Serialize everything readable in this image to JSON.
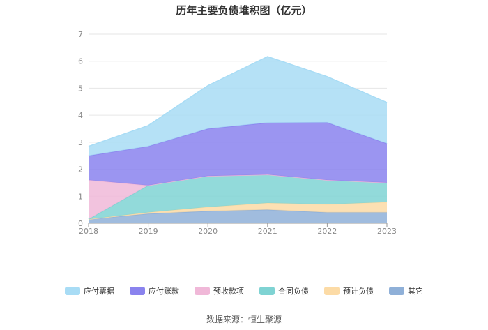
{
  "title": "历年主要负债堆积图（亿元）",
  "source": "数据来源：恒生聚源",
  "chart_data": {
    "type": "area",
    "stacked": true,
    "categories": [
      "2018",
      "2019",
      "2020",
      "2021",
      "2022",
      "2023"
    ],
    "ylim": [
      0,
      7
    ],
    "yticks": [
      "0",
      "1",
      "2",
      "3",
      "4",
      "5",
      "6",
      "7"
    ],
    "grid": true,
    "legend_position": "bottom",
    "series": [
      {
        "name": "其它",
        "color": "#8fb0d8",
        "values": [
          0.15,
          0.35,
          0.45,
          0.5,
          0.4,
          0.4
        ]
      },
      {
        "name": "预计负债",
        "color": "#fcdba6",
        "values": [
          0.0,
          0.05,
          0.15,
          0.25,
          0.3,
          0.38
        ]
      },
      {
        "name": "合同负债",
        "color": "#7fd3d3",
        "values": [
          0.0,
          1.0,
          1.15,
          1.05,
          0.9,
          0.72
        ]
      },
      {
        "name": "预收款项",
        "color": "#f0b8d8",
        "values": [
          1.45,
          0.0,
          0.0,
          0.0,
          0.0,
          0.0
        ]
      },
      {
        "name": "应付账款",
        "color": "#8a83ee",
        "values": [
          0.9,
          1.45,
          1.75,
          1.92,
          2.13,
          1.45
        ]
      },
      {
        "name": "应付票据",
        "color": "#a8dcf5",
        "values": [
          0.35,
          0.77,
          1.6,
          2.45,
          1.7,
          1.52
        ]
      }
    ]
  }
}
